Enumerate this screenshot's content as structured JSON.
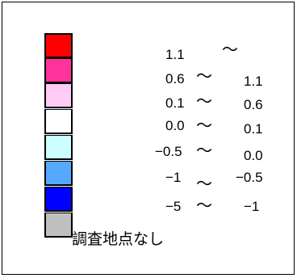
{
  "legend": {
    "rows": [
      {
        "color": "#ff0000",
        "from": "1.1",
        "sep": "～",
        "to": ""
      },
      {
        "color": "#ff3399",
        "from": "0.6",
        "sep": "～",
        "to": "1.1"
      },
      {
        "color": "#ffccf5",
        "from": "0.1",
        "sep": "～",
        "to": "0.6"
      },
      {
        "color": "#ffffff",
        "from": "0.0",
        "sep": "～",
        "to": "0.1"
      },
      {
        "color": "#ccffff",
        "from": "−0.5",
        "sep": "～",
        "to": "0.0"
      },
      {
        "color": "#55aaff",
        "from": "−1",
        "sep": "～",
        "to": "−0.5"
      },
      {
        "color": "#0000ff",
        "from": "−5",
        "sep": "～",
        "to": "−1"
      },
      {
        "color": "#c0c0c0",
        "from": "",
        "sep": "",
        "to": ""
      }
    ],
    "no_survey_label": "調査地点なし"
  }
}
